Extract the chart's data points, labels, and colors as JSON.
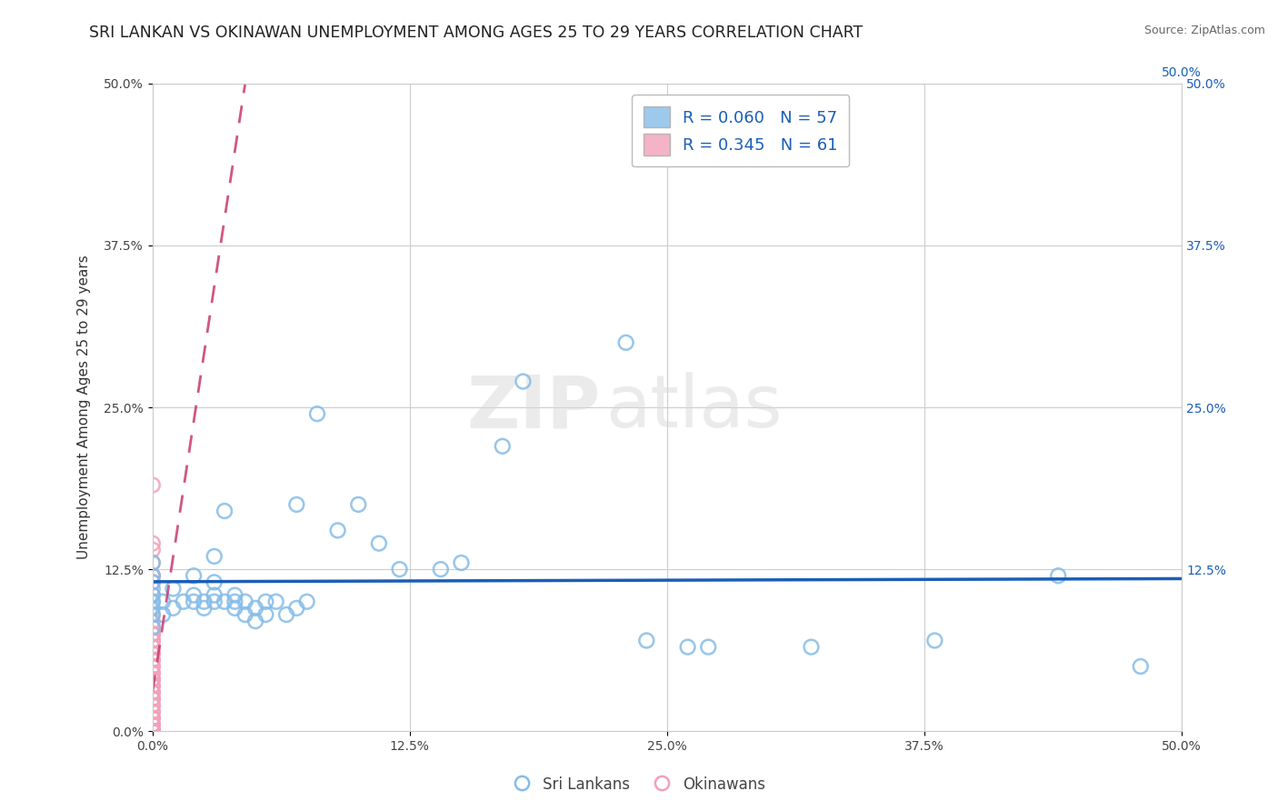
{
  "title": "SRI LANKAN VS OKINAWAN UNEMPLOYMENT AMONG AGES 25 TO 29 YEARS CORRELATION CHART",
  "source": "Source: ZipAtlas.com",
  "ylabel": "Unemployment Among Ages 25 to 29 years",
  "xlim": [
    0.0,
    0.5
  ],
  "ylim": [
    0.0,
    0.5
  ],
  "xtick_labels": [
    "0.0%",
    "12.5%",
    "25.0%",
    "37.5%",
    "50.0%"
  ],
  "xtick_vals": [
    0.0,
    0.125,
    0.25,
    0.375,
    0.5
  ],
  "ytick_labels": [
    "0.0%",
    "12.5%",
    "25.0%",
    "37.5%",
    "50.0%"
  ],
  "ytick_vals": [
    0.0,
    0.125,
    0.25,
    0.375,
    0.5
  ],
  "right_ytick_labels": [
    "12.5%",
    "25.0%",
    "37.5%",
    "50.0%"
  ],
  "right_ytick_vals": [
    0.125,
    0.25,
    0.375,
    0.5
  ],
  "top_xtick_labels": [
    "50.0%"
  ],
  "top_xtick_vals": [
    0.5
  ],
  "sri_lankans_x": [
    0.0,
    0.0,
    0.0,
    0.0,
    0.0,
    0.0,
    0.0,
    0.0,
    0.0,
    0.0,
    0.005,
    0.005,
    0.01,
    0.01,
    0.015,
    0.02,
    0.02,
    0.02,
    0.025,
    0.025,
    0.03,
    0.03,
    0.03,
    0.03,
    0.035,
    0.035,
    0.04,
    0.04,
    0.04,
    0.045,
    0.045,
    0.05,
    0.05,
    0.055,
    0.055,
    0.06,
    0.065,
    0.07,
    0.07,
    0.075,
    0.08,
    0.09,
    0.1,
    0.11,
    0.12,
    0.14,
    0.15,
    0.17,
    0.18,
    0.23,
    0.24,
    0.26,
    0.27,
    0.32,
    0.38,
    0.44,
    0.48
  ],
  "sri_lankans_y": [
    0.08,
    0.09,
    0.095,
    0.1,
    0.1,
    0.105,
    0.11,
    0.115,
    0.12,
    0.13,
    0.09,
    0.1,
    0.095,
    0.11,
    0.1,
    0.1,
    0.105,
    0.12,
    0.095,
    0.1,
    0.1,
    0.105,
    0.115,
    0.135,
    0.1,
    0.17,
    0.095,
    0.1,
    0.105,
    0.09,
    0.1,
    0.085,
    0.095,
    0.09,
    0.1,
    0.1,
    0.09,
    0.095,
    0.175,
    0.1,
    0.245,
    0.155,
    0.175,
    0.145,
    0.125,
    0.125,
    0.13,
    0.22,
    0.27,
    0.3,
    0.07,
    0.065,
    0.065,
    0.065,
    0.07,
    0.12,
    0.05
  ],
  "okinawans_x": [
    0.0,
    0.0,
    0.0,
    0.0,
    0.0,
    0.0,
    0.0,
    0.0,
    0.0,
    0.0,
    0.0,
    0.0,
    0.0,
    0.0,
    0.0,
    0.0,
    0.0,
    0.0,
    0.0,
    0.0,
    0.0,
    0.0,
    0.0,
    0.0,
    0.0,
    0.0,
    0.0,
    0.0,
    0.0,
    0.0,
    0.0,
    0.0,
    0.0,
    0.0,
    0.0,
    0.0,
    0.0,
    0.0,
    0.0,
    0.0,
    0.0,
    0.0,
    0.0,
    0.0,
    0.0,
    0.0,
    0.0,
    0.0,
    0.0,
    0.0,
    0.0,
    0.0,
    0.0,
    0.0,
    0.0,
    0.0,
    0.0,
    0.0,
    0.0,
    0.0,
    0.0
  ],
  "okinawans_y": [
    0.19,
    0.14,
    0.145,
    0.13,
    0.12,
    0.12,
    0.115,
    0.105,
    0.09,
    0.085,
    0.08,
    0.075,
    0.075,
    0.075,
    0.07,
    0.07,
    0.065,
    0.065,
    0.06,
    0.06,
    0.055,
    0.055,
    0.05,
    0.05,
    0.045,
    0.045,
    0.04,
    0.04,
    0.04,
    0.035,
    0.035,
    0.03,
    0.03,
    0.03,
    0.025,
    0.025,
    0.025,
    0.02,
    0.02,
    0.015,
    0.015,
    0.01,
    0.01,
    0.01,
    0.005,
    0.005,
    0.005,
    0.0,
    0.0,
    0.0,
    0.0,
    0.0,
    0.0,
    0.0,
    0.0,
    0.0,
    0.0,
    0.0,
    0.0,
    0.0,
    0.0
  ],
  "sri_lankans_color": "#85bce8",
  "okinawans_color": "#f2a0b8",
  "sri_lankans_trendline_color": "#1a5eb8",
  "okinawans_trendline_color": "#cc4477",
  "sri_lankans_R": 0.06,
  "sri_lankans_N": 57,
  "okinawans_R": 0.345,
  "okinawans_N": 61,
  "legend_label_sri": "Sri Lankans",
  "legend_label_oki": "Okinawans",
  "watermark_zip": "ZIP",
  "watermark_atlas": "atlas",
  "grid_color": "#cccccc",
  "background_color": "#ffffff",
  "title_fontsize": 12.5,
  "axis_label_fontsize": 11,
  "tick_fontsize": 10,
  "legend_fontsize": 13,
  "okinawan_trend_x": [
    0.0,
    0.045
  ],
  "okinawan_trend_y": [
    0.03,
    0.5
  ],
  "sri_lankan_trend_x": [
    0.0,
    0.5
  ],
  "sri_lankan_trend_y_start_approx": 0.115,
  "sri_lankan_trend_y_end_approx": 0.13
}
